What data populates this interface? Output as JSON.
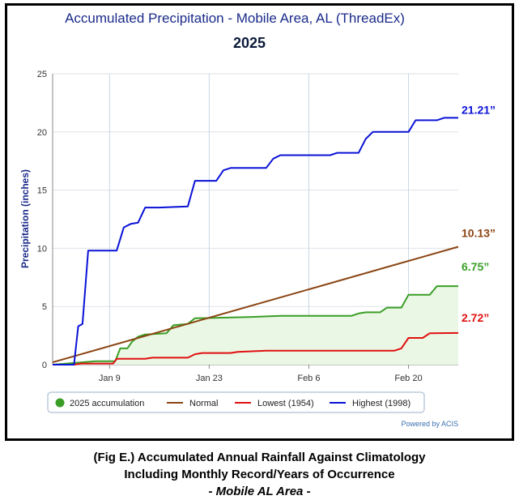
{
  "chart_data": {
    "type": "line",
    "title": "Accumulated Precipitation - Mobile Area, AL (ThreadEx)",
    "subtitle": "2025",
    "ylabel": "Precipitation (inches)",
    "xlabel": "",
    "ylim": [
      0,
      25
    ],
    "yticks": [
      "0",
      "5",
      "10",
      "15",
      "20",
      "25"
    ],
    "xticks": [
      "Jan 9",
      "Jan 23",
      "Feb 6",
      "Feb 20"
    ],
    "xtick_days": [
      9,
      23,
      37,
      51
    ],
    "xlim_days": [
      1,
      58
    ],
    "grid": true,
    "legend_position": "bottom",
    "credit": "Powered by ACIS",
    "series": [
      {
        "name": "2025 accumulation",
        "color": "#3a9e26",
        "fill": "#eaf7e4",
        "end_label": "6.75”",
        "points": [
          [
            1,
            0
          ],
          [
            7,
            0.3
          ],
          [
            9,
            0.3
          ],
          [
            9.8,
            0.3
          ],
          [
            10.5,
            1.4
          ],
          [
            11.5,
            1.4
          ],
          [
            12.2,
            2.0
          ],
          [
            13,
            2.4
          ],
          [
            14,
            2.6
          ],
          [
            17,
            2.7
          ],
          [
            18,
            3.4
          ],
          [
            20,
            3.5
          ],
          [
            21,
            4.0
          ],
          [
            22,
            4.0
          ],
          [
            29,
            4.1
          ],
          [
            33,
            4.2
          ],
          [
            43,
            4.2
          ],
          [
            44,
            4.4
          ],
          [
            45,
            4.5
          ],
          [
            47,
            4.5
          ],
          [
            48,
            4.9
          ],
          [
            50,
            4.9
          ],
          [
            51,
            6.0
          ],
          [
            54,
            6.0
          ],
          [
            55,
            6.75
          ],
          [
            58,
            6.75
          ]
        ]
      },
      {
        "name": "Normal",
        "color": "#8b4513",
        "end_label": "10.13”",
        "points": [
          [
            1,
            0.2
          ],
          [
            58,
            10.13
          ]
        ]
      },
      {
        "name": "Lowest (1954)",
        "color": "#e01010",
        "end_label": "2.72”",
        "points": [
          [
            1,
            0
          ],
          [
            4,
            0
          ],
          [
            5,
            0.1
          ],
          [
            9.5,
            0.1
          ],
          [
            10,
            0.5
          ],
          [
            14,
            0.5
          ],
          [
            15,
            0.6
          ],
          [
            20,
            0.6
          ],
          [
            21,
            0.9
          ],
          [
            22,
            1.0
          ],
          [
            26,
            1.0
          ],
          [
            27,
            1.1
          ],
          [
            31,
            1.2
          ],
          [
            49,
            1.2
          ],
          [
            50,
            1.4
          ],
          [
            51,
            2.3
          ],
          [
            53,
            2.3
          ],
          [
            54,
            2.7
          ],
          [
            58,
            2.72
          ]
        ]
      },
      {
        "name": "Highest (1998)",
        "color": "#0a12d6",
        "end_label": "21.21”",
        "points": [
          [
            1,
            0
          ],
          [
            4,
            0
          ],
          [
            4.6,
            3.3
          ],
          [
            5.2,
            3.5
          ],
          [
            6,
            9.8
          ],
          [
            10,
            9.8
          ],
          [
            11,
            11.8
          ],
          [
            12,
            12.1
          ],
          [
            13,
            12.2
          ],
          [
            14,
            13.5
          ],
          [
            16,
            13.5
          ],
          [
            20,
            13.6
          ],
          [
            21,
            15.8
          ],
          [
            24,
            15.8
          ],
          [
            25,
            16.7
          ],
          [
            26,
            16.9
          ],
          [
            31,
            16.9
          ],
          [
            32,
            17.7
          ],
          [
            33,
            18.0
          ],
          [
            40,
            18.0
          ],
          [
            41,
            18.2
          ],
          [
            44,
            18.2
          ],
          [
            45,
            19.4
          ],
          [
            46,
            20.0
          ],
          [
            51,
            20.0
          ],
          [
            52,
            21.0
          ],
          [
            55,
            21.0
          ],
          [
            56,
            21.21
          ],
          [
            58,
            21.21
          ]
        ]
      }
    ]
  },
  "caption": {
    "line1": "(Fig E.) Accumulated Annual Rainfall Against  Climatology",
    "line2": "Including Monthly Record/Years of Occurrence",
    "line3": "- Mobile AL Area -"
  }
}
